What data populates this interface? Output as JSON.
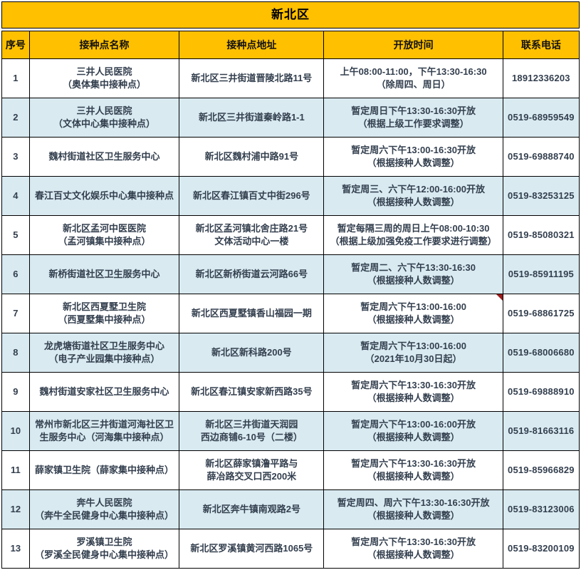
{
  "title": "新北区",
  "columns": [
    "序号",
    "接种点名称",
    "接种点地址",
    "开放时间",
    "联系电话"
  ],
  "colors": {
    "header_bg": "#FFC000",
    "alt_row_bg": "#D9EAF1",
    "border": "#000000",
    "comment_marker": "#9B1B1B",
    "body_text": "#333F4E"
  },
  "rows": [
    {
      "no": "1",
      "name": "三井人民医院\n（奥体集中接种点）",
      "address": "新北区三井街道晋陵北路11号",
      "hours": "上午08:00-11:00，下午13:30-16:30\n（除周四、周日）",
      "phone": "18912336203"
    },
    {
      "no": "2",
      "name": "三井人民医院\n（文体中心集中接种点）",
      "address": "新北区三井街道秦岭路1-1",
      "hours": "暂定周日下午13:30-16:30开放\n（根据上级工作要求调整）",
      "phone": "0519-68959549"
    },
    {
      "no": "3",
      "name": "魏村街道社区卫生服务中心",
      "address": "新北区魏村浦中路91号",
      "hours": "暂定周六下午13:00-16:30开放\n（根据接种人数调整）",
      "phone": "0519-69888740"
    },
    {
      "no": "4",
      "name": "春江百丈文化娱乐中心集中接种点",
      "address": "新北区春江镇百丈中街296号",
      "hours": "暂定周三、六下午12:00-16:00开放\n（根据接种人数调整）",
      "phone": "0519-83253125"
    },
    {
      "no": "5",
      "name": "新北区孟河中医医院\n（孟河镇集中接种点）",
      "address": "新北区孟河镇北舍庄路21号\n文体活动中心一楼",
      "hours": "暂定每隔三周的周日上午08:00-10:30\n（根据上级加强免疫工作要求进行调整）",
      "phone": "0519-85080321"
    },
    {
      "no": "6",
      "name": "新桥街道社区卫生服务中心",
      "address": "新北区新桥街道云河路66号",
      "hours": "暂定周二、六下午13:30-16:30\n（根据接种人数调整）",
      "phone": "0519-85911195"
    },
    {
      "no": "7",
      "name": "新北区西夏墅卫生院\n（西夏墅集中接种点）",
      "address": "新北区西夏墅镇香山福园一期",
      "hours": "暂定周六下午13:00-16:00\n（根据接种人数调整）",
      "phone": "0519-68861725",
      "marker": true
    },
    {
      "no": "8",
      "name": "龙虎塘街道社区卫生服务中心\n（电子产业园集中接种点）",
      "address": "新北区新科路200号",
      "hours": "暂定周六下午13:00-16:00\n（2021年10月30日起）",
      "phone": "0519-68006680"
    },
    {
      "no": "9",
      "name": "魏村街道安家社区卫生服务中心",
      "address": "新北区春江镇安家新西路35号",
      "hours": "暂定周六下午13:30-16:30开放\n（根据接种人数调整）",
      "phone": "0519-69888910"
    },
    {
      "no": "10",
      "name": "常州市新北区三井街道河海社区卫生服务中心（河海集中接种点）",
      "address": "新北区三井街道天润园\n西边商铺6-10号（二楼）",
      "hours": "暂定周六下午13:00-16:00开放\n（根据接种人数调整）",
      "phone": "0519-81663116"
    },
    {
      "no": "11",
      "name": "薛家镇卫生院（薛家集中接种点）",
      "address": "新北区薛家镇澛平路与\n薛冶路交叉口西200米",
      "hours": "暂定周六下午13:30-16:30开放\n（根据接种人数调整）",
      "phone": "0519-85966829"
    },
    {
      "no": "12",
      "name": "奔牛人民医院\n（奔牛全民健身中心集中接种点）",
      "address": "新北区奔牛镇南观路2号",
      "hours": "暂定周四、周六下午13:30-16:30开放\n（根据接种人数调整）",
      "phone": "0519-83123006"
    },
    {
      "no": "13",
      "name": "罗溪镇卫生院\n（罗溪全民健身中心集中接种点）",
      "address": "新北区罗溪镇黄河西路1065号",
      "hours": "暂定周六下午13:30-16:30开放\n（根据接种人数调整）",
      "phone": "0519-83200109"
    }
  ]
}
